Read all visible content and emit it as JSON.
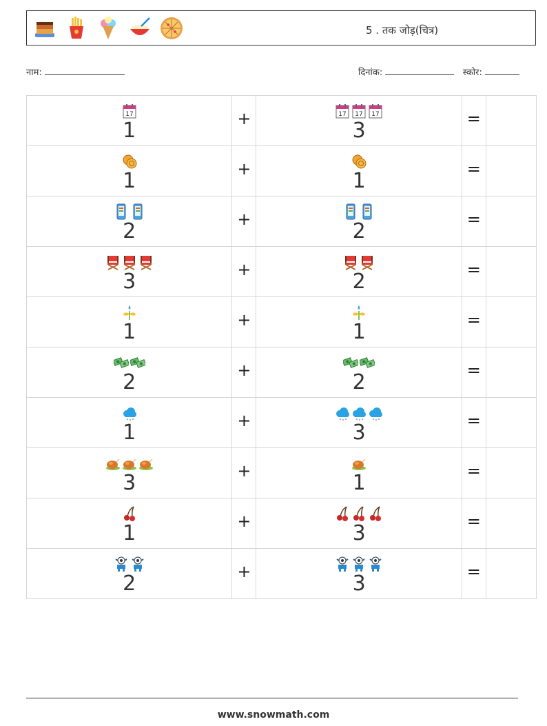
{
  "header": {
    "title": "5 . तक जोड़(चित्र)",
    "icons": [
      "cake-icon",
      "fries-icon",
      "ice-cream-icon",
      "rice-bowl-icon",
      "pizza-icon"
    ]
  },
  "info": {
    "name_label": "नाम:",
    "date_label": "दिनांक:",
    "score_label": "स्कोर:"
  },
  "rows": [
    {
      "icon": "calendar-icon",
      "a": "1",
      "op": "+",
      "b": "3",
      "eq": "="
    },
    {
      "icon": "coins-icon",
      "a": "1",
      "op": "+",
      "b": "1",
      "eq": "="
    },
    {
      "icon": "phone-icon",
      "a": "2",
      "op": "+",
      "b": "2",
      "eq": "="
    },
    {
      "icon": "chair-icon",
      "a": "3",
      "op": "+",
      "b": "2",
      "eq": "="
    },
    {
      "icon": "sprout-icon",
      "a": "1",
      "op": "+",
      "b": "1",
      "eq": "="
    },
    {
      "icon": "money-icon",
      "a": "2",
      "op": "+",
      "b": "2",
      "eq": "="
    },
    {
      "icon": "cloud-icon",
      "a": "1",
      "op": "+",
      "b": "3",
      "eq": "="
    },
    {
      "icon": "roast-chicken-icon",
      "a": "3",
      "op": "+",
      "b": "1",
      "eq": "="
    },
    {
      "icon": "cherries-icon",
      "a": "1",
      "op": "+",
      "b": "3",
      "eq": "="
    },
    {
      "icon": "robot-icon",
      "a": "2",
      "op": "+",
      "b": "3",
      "eq": "="
    }
  ],
  "footer": {
    "site": "www.snowmath.com"
  }
}
